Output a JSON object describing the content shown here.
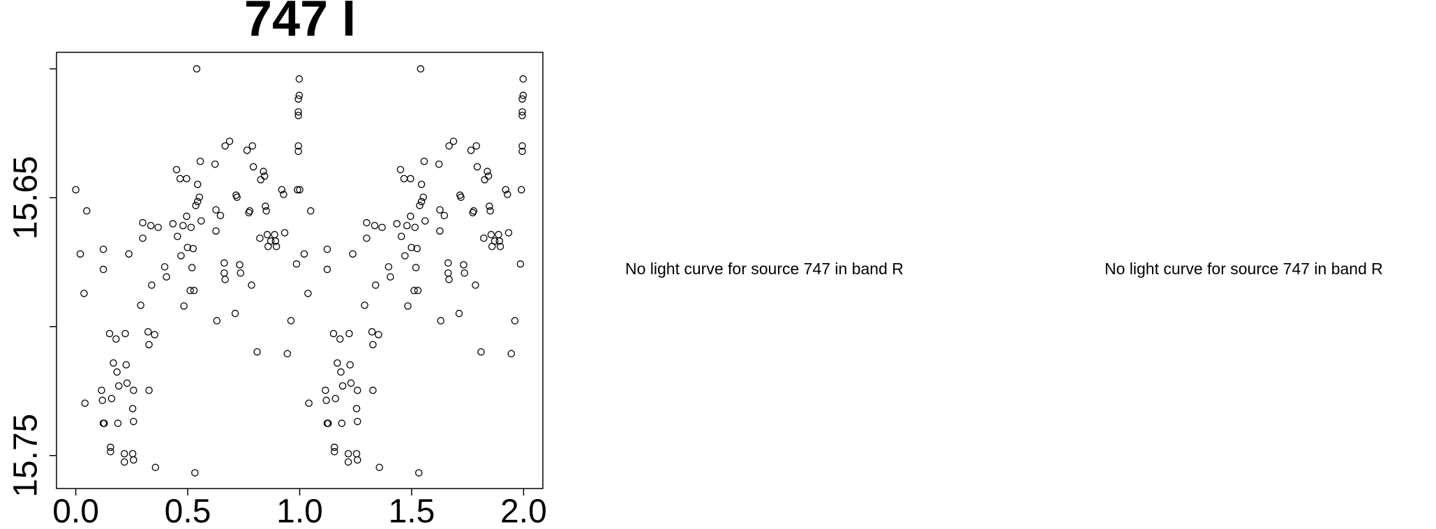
{
  "chart_data": {
    "type": "scatter",
    "title": "747 I",
    "x": [
      0,
      0.02,
      0.049,
      0.037,
      0.041,
      0.123,
      0.123,
      0.115,
      0.119,
      0.123,
      0.127,
      0.151,
      0.155,
      0.155,
      0.16,
      0.168,
      0.18,
      0.184,
      0.188,
      0.192,
      0.217,
      0.217,
      0.221,
      0.225,
      0.229,
      0.237,
      0.254,
      0.258,
      0.254,
      0.258,
      0.258,
      0.29,
      0.299,
      0.299,
      0.323,
      0.327,
      0.327,
      0.335,
      0.339,
      0.352,
      0.356,
      0.368,
      0.397,
      0.405,
      0.434,
      0.45,
      0.454,
      0.466,
      0.47,
      0.479,
      0.483,
      0.495,
      0.495,
      0.499,
      0.511,
      0.515,
      0.519,
      0.524,
      0.528,
      0.532,
      0.54,
      0.536,
      0.544,
      0.544,
      0.552,
      0.556,
      0.56,
      0.622,
      0.626,
      0.626,
      0.63,
      0.646,
      0.663,
      0.663,
      0.667,
      0.667,
      0.687,
      0.712,
      0.716,
      0.72,
      0.732,
      0.736,
      0.765,
      0.773,
      0.777,
      0.785,
      0.789,
      0.793,
      0.81,
      0.822,
      0.826,
      0.838,
      0.843,
      0.847,
      0.851,
      0.855,
      0.859,
      0.871,
      0.888,
      0.892,
      0.896,
      0.92,
      0.928,
      0.933,
      0.945,
      0.961,
      0.986,
      0.99,
      0.994,
      0.994,
      0.994,
      0.994,
      0.998,
      0.994,
      0.998,
      1,
      1.02,
      1.049,
      1.037,
      1.041,
      1.123,
      1.123,
      1.115,
      1.119,
      1.123,
      1.127,
      1.151,
      1.155,
      1.155,
      1.16,
      1.168,
      1.18,
      1.184,
      1.188,
      1.192,
      1.217,
      1.217,
      1.221,
      1.225,
      1.229,
      1.237,
      1.254,
      1.258,
      1.254,
      1.258,
      1.258,
      1.29,
      1.299,
      1.299,
      1.323,
      1.327,
      1.327,
      1.335,
      1.339,
      1.352,
      1.356,
      1.368,
      1.397,
      1.405,
      1.434,
      1.45,
      1.454,
      1.466,
      1.47,
      1.479,
      1.483,
      1.495,
      1.495,
      1.499,
      1.511,
      1.515,
      1.519,
      1.524,
      1.528,
      1.532,
      1.54,
      1.536,
      1.544,
      1.544,
      1.552,
      1.556,
      1.56,
      1.622,
      1.626,
      1.626,
      1.63,
      1.646,
      1.663,
      1.663,
      1.667,
      1.667,
      1.687,
      1.712,
      1.716,
      1.72,
      1.732,
      1.736,
      1.765,
      1.773,
      1.777,
      1.785,
      1.789,
      1.793,
      1.81,
      1.822,
      1.826,
      1.838,
      1.843,
      1.847,
      1.851,
      1.855,
      1.859,
      1.871,
      1.888,
      1.892,
      1.896,
      1.92,
      1.928,
      1.933,
      1.945,
      1.961,
      1.986,
      1.99,
      1.994,
      1.994,
      1.994,
      1.994,
      1.998,
      1.994,
      1.998
    ],
    "values": [
      15.6469,
      15.6718,
      15.6551,
      15.6871,
      15.7297,
      15.67,
      15.6778,
      15.7247,
      15.7286,
      15.7375,
      15.7375,
      15.7027,
      15.7468,
      15.7485,
      15.7279,
      15.7141,
      15.7048,
      15.7176,
      15.7375,
      15.723,
      15.7493,
      15.7525,
      15.7027,
      15.7148,
      15.7219,
      15.6718,
      15.7493,
      15.7517,
      15.7318,
      15.7247,
      15.7368,
      15.6917,
      15.6597,
      15.6657,
      15.702,
      15.707,
      15.7247,
      15.6608,
      15.6839,
      15.7031,
      15.7546,
      15.6615,
      15.6768,
      15.6807,
      15.6601,
      15.6391,
      15.665,
      15.6426,
      15.6725,
      15.6608,
      15.692,
      15.6572,
      15.6426,
      15.6693,
      15.686,
      15.6615,
      15.6771,
      15.6697,
      15.686,
      15.7567,
      15.6,
      15.653,
      15.6515,
      15.6448,
      15.6498,
      15.6359,
      15.659,
      15.637,
      15.6547,
      15.6629,
      15.6977,
      15.6569,
      15.6753,
      15.6792,
      15.6817,
      15.6299,
      15.6281,
      15.6949,
      15.649,
      15.6498,
      15.676,
      15.6792,
      15.6316,
      15.6558,
      15.6551,
      15.6839,
      15.6299,
      15.638,
      15.7098,
      15.6657,
      15.643,
      15.6398,
      15.6416,
      15.6533,
      15.6551,
      15.6643,
      15.6689,
      15.6668,
      15.6643,
      15.6668,
      15.6689,
      15.6469,
      15.6487,
      15.6636,
      15.7105,
      15.6977,
      15.6757,
      15.6469,
      15.6299,
      15.632,
      15.6167,
      15.6181,
      15.6103,
      15.6117,
      15.6039,
      15.6469,
      15.6718,
      15.6551,
      15.6871,
      15.7297,
      15.67,
      15.6778,
      15.7247,
      15.7286,
      15.7375,
      15.7375,
      15.7027,
      15.7468,
      15.7485,
      15.7279,
      15.7141,
      15.7048,
      15.7176,
      15.7375,
      15.723,
      15.7493,
      15.7525,
      15.7027,
      15.7148,
      15.7219,
      15.6718,
      15.7493,
      15.7517,
      15.7318,
      15.7247,
      15.7368,
      15.6917,
      15.6597,
      15.6657,
      15.702,
      15.707,
      15.7247,
      15.6608,
      15.6839,
      15.7031,
      15.7546,
      15.6615,
      15.6768,
      15.6807,
      15.6601,
      15.6391,
      15.665,
      15.6426,
      15.6725,
      15.6608,
      15.692,
      15.6572,
      15.6426,
      15.6693,
      15.686,
      15.6615,
      15.6771,
      15.6697,
      15.686,
      15.7567,
      15.6,
      15.653,
      15.6515,
      15.6448,
      15.6498,
      15.6359,
      15.659,
      15.637,
      15.6547,
      15.6629,
      15.6977,
      15.6569,
      15.6753,
      15.6792,
      15.6817,
      15.6299,
      15.6281,
      15.6949,
      15.649,
      15.6498,
      15.676,
      15.6792,
      15.6316,
      15.6558,
      15.6551,
      15.6839,
      15.6299,
      15.638,
      15.7098,
      15.6657,
      15.643,
      15.6398,
      15.6416,
      15.6533,
      15.6551,
      15.6643,
      15.6689,
      15.6668,
      15.6643,
      15.6668,
      15.6689,
      15.6469,
      15.6487,
      15.6636,
      15.7105,
      15.6977,
      15.6757,
      15.6469,
      15.6299,
      15.632,
      15.6167,
      15.6181,
      15.6103,
      15.6117,
      15.6039
    ],
    "color": "#000000",
    "xlim": [
      -0.086,
      2.086
    ],
    "ylim": [
      15.7628,
      15.5936
    ],
    "xticks": [
      {
        "value": 0,
        "label": "0.0"
      },
      {
        "value": 0.5,
        "label": "0.5"
      },
      {
        "value": 1,
        "label": "1.0"
      },
      {
        "value": 1.5,
        "label": "1.5"
      },
      {
        "value": 2,
        "label": "2.0"
      }
    ],
    "yticks": [
      {
        "value": 15.6,
        "label": null
      },
      15.65,
      {
        "value": 15.7,
        "label": null
      },
      15.75
    ]
  },
  "messages": [
    "No light curve for source 747 in band R",
    "No light curve for source 747 in band R"
  ]
}
